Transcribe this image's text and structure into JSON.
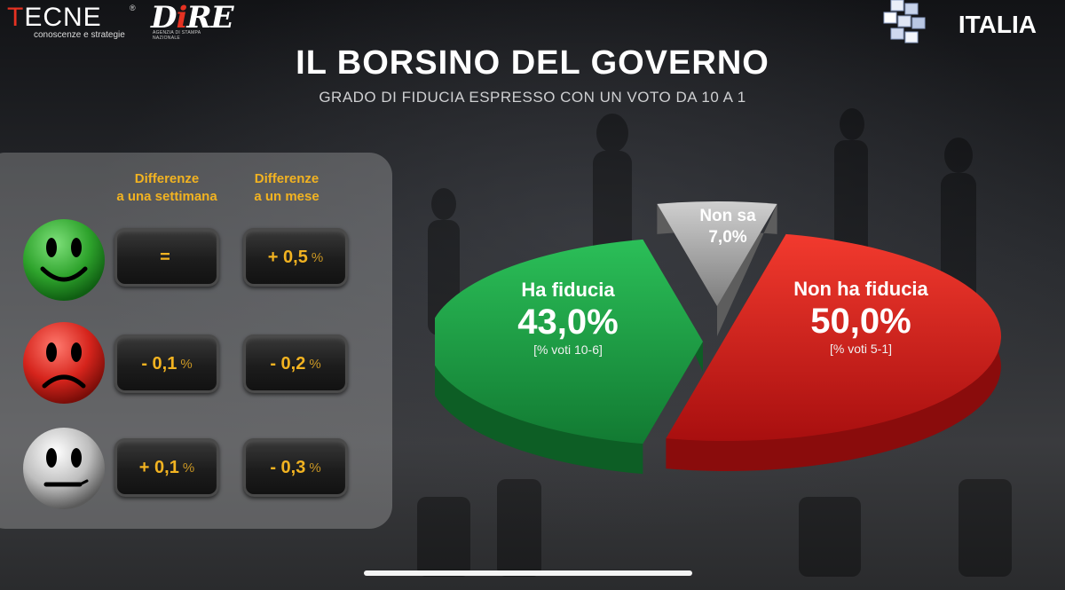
{
  "logos": {
    "tecne": {
      "name_first": "T",
      "name_rest": "ECNE",
      "registered": "®",
      "tagline": "conoscenze e strategie"
    },
    "dire": {
      "name_d": "D",
      "name_i": "i",
      "name_re": "RE",
      "tagline": "AGENZIA DI STAMPA NAZIONALE"
    },
    "italia": {
      "word": "ITALIA"
    }
  },
  "title": "IL BORSINO DEL GOVERNO",
  "subtitle": "GRADO DI FIDUCIA ESPRESSO CON UN VOTO DA 10  A 1",
  "differences": {
    "col_week_line1": "Differenze",
    "col_week_line2": "a una settimana",
    "col_month_line1": "Differenze",
    "col_month_line2": "a un mese",
    "rows": [
      {
        "face": "happy-face-icon",
        "week": "=",
        "week_pct": "",
        "month": "+ 0,5",
        "month_pct": "%"
      },
      {
        "face": "sad-face-icon",
        "week": "- 0,1",
        "week_pct": "%",
        "month": "- 0,2",
        "month_pct": "%"
      },
      {
        "face": "neutral-face-icon",
        "week": "+ 0,1",
        "week_pct": "%",
        "month": "- 0,3",
        "month_pct": "%"
      }
    ]
  },
  "chart_data": {
    "type": "pie",
    "title": "IL BORSINO DEL GOVERNO",
    "subtitle": "GRADO DI FIDUCIA ESPRESSO CON UN VOTO DA 10  A 1",
    "slices": [
      {
        "name": "Ha fiducia",
        "value": 43.0,
        "label": "43,0%",
        "note": "[% voti 10-6]",
        "color": "#1fa247"
      },
      {
        "name": "Non ha fiducia",
        "value": 50.0,
        "label": "50,0%",
        "note": "[% voti 5-1]",
        "color": "#e41e1e"
      },
      {
        "name": "Non sa",
        "value": 7.0,
        "label": "7,0%",
        "note": "",
        "color": "#a9a9a9"
      }
    ]
  },
  "colors": {
    "accent": "#f2b321",
    "green": "#1fa247",
    "red": "#e41e1e",
    "gray": "#a9a9a9"
  }
}
